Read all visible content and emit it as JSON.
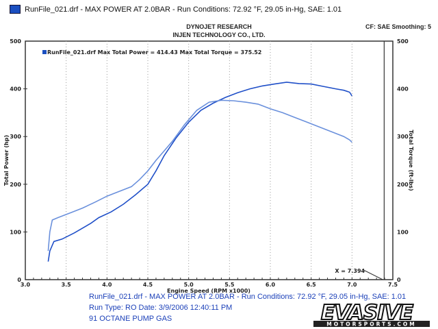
{
  "header": {
    "legend_text": "RunFile_021.drf - MAX POWER AT 2.0BAR  -  Run Conditions: 72.92 °F, 29.05 in-Hg, SAE: 1.01"
  },
  "titles": {
    "line1": "DYNOJET RESEARCH",
    "line2": "INJEN TECHNOLOGY CO., LTD.",
    "cf": "CF: SAE  Smoothing: 5"
  },
  "chart_data": {
    "type": "line",
    "xlabel": "Engine Speed (RPM x1000)",
    "ylabel": "Total Power (hp)",
    "y2label": "Total Torque (ft-lbs)",
    "xlim": [
      3.0,
      7.5
    ],
    "ylim": [
      0,
      500
    ],
    "xticks": [
      "3.0",
      "3.5",
      "4.0",
      "4.5",
      "5.0",
      "5.5",
      "6.0",
      "6.5",
      "7.0",
      "7.5"
    ],
    "yticks": [
      "0",
      "100",
      "200",
      "300",
      "400",
      "500"
    ],
    "grid": true,
    "legend": "RunFile_021.drf Max Total Power = 414.43    Max Total Torque = 375.52",
    "cursor_label": "X = 7.394",
    "cursor_x": 7.394,
    "series": [
      {
        "name": "Total Power",
        "color": "#1f4fc8",
        "x": [
          3.28,
          3.3,
          3.35,
          3.45,
          3.6,
          3.8,
          3.9,
          4.05,
          4.2,
          4.35,
          4.5,
          4.6,
          4.7,
          4.85,
          5.0,
          5.15,
          5.3,
          5.45,
          5.6,
          5.75,
          5.9,
          6.05,
          6.2,
          6.35,
          6.5,
          6.65,
          6.8,
          6.9,
          6.97,
          7.0
        ],
        "values": [
          38,
          60,
          80,
          85,
          98,
          118,
          130,
          142,
          158,
          178,
          200,
          228,
          260,
          298,
          330,
          355,
          370,
          382,
          392,
          400,
          406,
          410,
          414,
          411,
          410,
          405,
          400,
          397,
          393,
          385
        ]
      },
      {
        "name": "Total Torque",
        "color": "#6a90dc",
        "x": [
          3.28,
          3.3,
          3.33,
          3.4,
          3.55,
          3.7,
          3.85,
          4.0,
          4.15,
          4.3,
          4.4,
          4.5,
          4.6,
          4.7,
          4.8,
          4.95,
          5.1,
          5.25,
          5.4,
          5.55,
          5.7,
          5.85,
          6.0,
          6.15,
          6.3,
          6.45,
          6.6,
          6.75,
          6.9,
          6.97,
          7.0
        ],
        "values": [
          60,
          100,
          125,
          130,
          140,
          150,
          162,
          175,
          185,
          195,
          210,
          228,
          250,
          270,
          290,
          325,
          355,
          372,
          376,
          375,
          372,
          368,
          358,
          350,
          340,
          330,
          320,
          310,
          300,
          293,
          288
        ]
      }
    ]
  },
  "footer": {
    "line1": "RunFile_021.drf - MAX POWER AT 2.0BAR  -  Run Conditions: 72.92 °F, 29.05 in-Hg, SAE: 1.01",
    "line2": "Run Type: RO  Date: 3/9/2006 12:40:11 PM",
    "line3": "91 OCTANE PUMP GAS"
  },
  "logo": {
    "text": "EVASIVE",
    "sub": "MOTORSPORTS.COM"
  }
}
